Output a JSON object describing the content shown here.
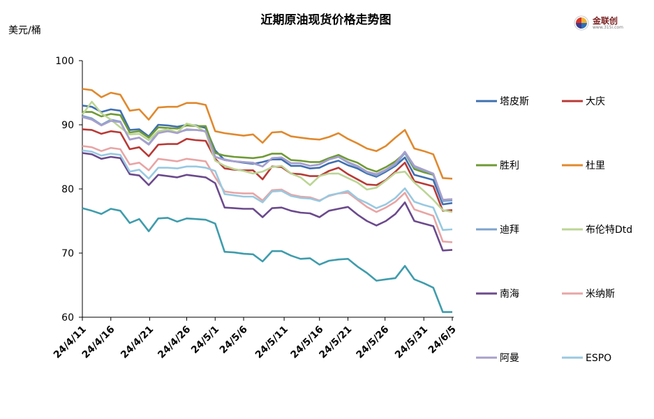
{
  "logo": {
    "text": "金联创",
    "sub": "www.315i.com"
  },
  "chart_data": {
    "type": "line",
    "title": "近期原油现货价格走势图",
    "ylabel": "美元/桶",
    "xlabel": "",
    "ylim": [
      60,
      100
    ],
    "yticks": [
      60,
      70,
      80,
      90,
      100
    ],
    "x": [
      "24/4/11",
      "24/4/12",
      "24/4/15",
      "24/4/16",
      "24/4/17",
      "24/4/18",
      "24/4/19",
      "24/4/22",
      "24/4/23",
      "24/4/24",
      "24/4/25",
      "24/4/26",
      "24/4/29",
      "24/4/30",
      "24/5/1",
      "24/5/2",
      "24/5/3",
      "24/5/6",
      "24/5/7",
      "24/5/8",
      "24/5/9",
      "24/5/10",
      "24/5/13",
      "24/5/14",
      "24/5/15",
      "24/5/16",
      "24/5/17",
      "24/5/20",
      "24/5/21",
      "24/5/22",
      "24/5/23",
      "24/5/24",
      "24/5/27",
      "24/5/28",
      "24/5/29",
      "24/5/30",
      "24/5/31",
      "24/6/3",
      "24/6/4",
      "24/6/5"
    ],
    "xtick_labels": [
      "24/4/11",
      "24/4/16",
      "24/4/21",
      "24/4/26",
      "24/5/1",
      "24/5/6",
      "24/5/11",
      "24/5/16",
      "24/5/21",
      "24/5/26",
      "24/5/31",
      "24/6/5"
    ],
    "grid": false,
    "legend_position": "right",
    "series": [
      {
        "name": "塔皮斯",
        "color": "#3f6fb0",
        "values": [
          93.0,
          92.8,
          92.0,
          92.4,
          92.2,
          89.2,
          89.3,
          88.2,
          90.0,
          89.9,
          89.7,
          90.0,
          89.9,
          89.5,
          86.0,
          84.5,
          84.3,
          84.1,
          83.9,
          84.2,
          84.6,
          84.6,
          83.6,
          83.6,
          83.2,
          83.3,
          84.0,
          84.4,
          83.7,
          83.2,
          82.4,
          81.9,
          82.7,
          83.6,
          84.9,
          82.2,
          81.8,
          81.4,
          77.6,
          77.8
        ]
      },
      {
        "name": "大庆",
        "color": "#b83a36",
        "values": [
          89.3,
          89.2,
          88.6,
          89.0,
          88.8,
          86.2,
          86.5,
          85.1,
          86.9,
          87.0,
          87.0,
          87.8,
          87.6,
          87.5,
          84.7,
          83.2,
          83.0,
          82.9,
          82.9,
          81.5,
          83.5,
          83.4,
          82.4,
          82.3,
          82.0,
          82.0,
          82.8,
          83.3,
          82.3,
          81.5,
          80.7,
          80.6,
          81.4,
          82.7,
          84.1,
          81.2,
          80.8,
          80.4,
          76.6,
          76.7
        ]
      },
      {
        "name": "胜利",
        "color": "#6f9a35",
        "values": [
          92.0,
          92.0,
          91.3,
          91.7,
          91.5,
          88.8,
          89.0,
          88.0,
          89.6,
          89.5,
          89.4,
          89.9,
          89.8,
          89.8,
          85.6,
          85.2,
          85.0,
          84.9,
          84.8,
          85.0,
          85.5,
          85.5,
          84.5,
          84.4,
          84.2,
          84.2,
          84.8,
          85.3,
          84.6,
          84.1,
          83.2,
          82.7,
          83.4,
          84.3,
          85.6,
          83.1,
          82.6,
          82.2,
          78.3,
          78.4
        ]
      },
      {
        "name": "杜里",
        "color": "#e0892e",
        "values": [
          95.6,
          95.4,
          94.3,
          95.0,
          94.7,
          92.2,
          92.4,
          90.8,
          92.7,
          92.8,
          92.8,
          93.4,
          93.4,
          93.1,
          89.0,
          88.7,
          88.5,
          88.3,
          88.5,
          87.2,
          88.8,
          88.9,
          88.2,
          88.0,
          87.8,
          87.7,
          88.1,
          88.7,
          87.8,
          87.1,
          86.3,
          85.9,
          86.7,
          88.0,
          89.2,
          86.3,
          85.9,
          85.4,
          81.7,
          81.6
        ]
      },
      {
        "name": "迪拜",
        "color": "#7ea3cd",
        "values": [
          91.4,
          91.0,
          90.0,
          90.8,
          90.5,
          87.7,
          88.0,
          87.0,
          88.8,
          89.0,
          88.8,
          89.2,
          89.2,
          89.0,
          85.0,
          84.6,
          84.3,
          84.2,
          84.0,
          83.5,
          84.8,
          84.9,
          84.0,
          84.0,
          83.6,
          83.8,
          84.6,
          85.0,
          84.1,
          83.5,
          82.6,
          82.1,
          82.9,
          83.8,
          85.6,
          83.4,
          82.9,
          82.3,
          78.1,
          78.2
        ]
      },
      {
        "name": "布伦特Dtd",
        "color": "#bcd595",
        "values": [
          91.6,
          93.6,
          91.8,
          90.8,
          89.6,
          88.5,
          88.6,
          87.6,
          89.0,
          89.3,
          88.8,
          90.2,
          89.8,
          88.8,
          84.4,
          83.6,
          83.1,
          82.8,
          82.4,
          82.7,
          83.4,
          83.6,
          82.4,
          81.8,
          80.6,
          82.0,
          82.4,
          82.4,
          81.7,
          81.0,
          79.9,
          80.2,
          81.3,
          82.5,
          82.7,
          81.0,
          79.7,
          78.3,
          76.7,
          76.4
        ]
      },
      {
        "name": "南海",
        "color": "#6b4a8c",
        "values": [
          85.6,
          85.4,
          84.7,
          85.0,
          84.8,
          82.3,
          82.1,
          80.6,
          82.2,
          82.0,
          81.8,
          82.2,
          82.0,
          81.8,
          80.9,
          77.1,
          77.0,
          76.9,
          76.9,
          75.6,
          77.0,
          77.1,
          76.6,
          76.3,
          76.2,
          75.6,
          76.6,
          76.9,
          77.2,
          76.0,
          75.0,
          74.3,
          75.0,
          76.1,
          77.9,
          75.0,
          74.6,
          74.2,
          70.4,
          70.5
        ]
      },
      {
        "name": "米纳斯",
        "color": "#e8a5a5",
        "values": [
          86.7,
          86.5,
          85.9,
          86.4,
          86.2,
          83.8,
          84.1,
          82.9,
          84.7,
          84.5,
          84.3,
          84.7,
          84.5,
          84.3,
          81.8,
          79.6,
          79.4,
          79.3,
          79.3,
          78.2,
          79.8,
          79.9,
          79.1,
          78.8,
          78.7,
          78.2,
          78.9,
          79.3,
          79.4,
          78.3,
          77.2,
          76.4,
          77.1,
          78.0,
          79.4,
          76.8,
          76.3,
          75.8,
          71.8,
          71.7
        ]
      },
      {
        "name": "阿曼",
        "color": "#a89fcc",
        "values": [
          91.2,
          90.8,
          89.9,
          90.6,
          90.4,
          87.7,
          88.0,
          86.9,
          88.7,
          89.0,
          88.7,
          89.3,
          89.2,
          89.0,
          85.0,
          84.5,
          84.3,
          84.2,
          84.1,
          83.5,
          84.8,
          84.9,
          84.0,
          84.0,
          83.6,
          83.8,
          84.6,
          85.0,
          84.2,
          83.6,
          82.7,
          82.3,
          83.0,
          84.0,
          85.8,
          83.6,
          83.0,
          82.4,
          78.3,
          78.4
        ]
      },
      {
        "name": "ESPO",
        "color": "#98c9e1",
        "values": [
          86.0,
          85.8,
          85.2,
          85.5,
          85.3,
          82.7,
          83.0,
          81.6,
          83.3,
          83.3,
          83.2,
          83.5,
          83.5,
          83.3,
          82.8,
          79.2,
          79.0,
          78.8,
          78.8,
          77.9,
          79.6,
          79.7,
          78.9,
          78.6,
          78.5,
          78.1,
          79.0,
          79.3,
          79.7,
          78.5,
          77.8,
          77.0,
          77.6,
          78.6,
          80.1,
          78.0,
          77.5,
          77.1,
          73.6,
          73.7
        ]
      },
      {
        "name": "",
        "color": "#3f9cac",
        "legend": false,
        "values": [
          77.0,
          76.6,
          76.1,
          76.9,
          76.6,
          74.7,
          75.3,
          73.4,
          75.4,
          75.5,
          74.9,
          75.4,
          75.3,
          75.2,
          74.6,
          70.2,
          70.1,
          69.9,
          69.8,
          68.7,
          70.3,
          70.3,
          69.6,
          69.1,
          69.2,
          68.2,
          68.8,
          69.0,
          69.1,
          67.9,
          66.9,
          65.7,
          65.9,
          66.1,
          68.0,
          65.9,
          65.3,
          64.6,
          60.8,
          60.8
        ]
      }
    ]
  }
}
